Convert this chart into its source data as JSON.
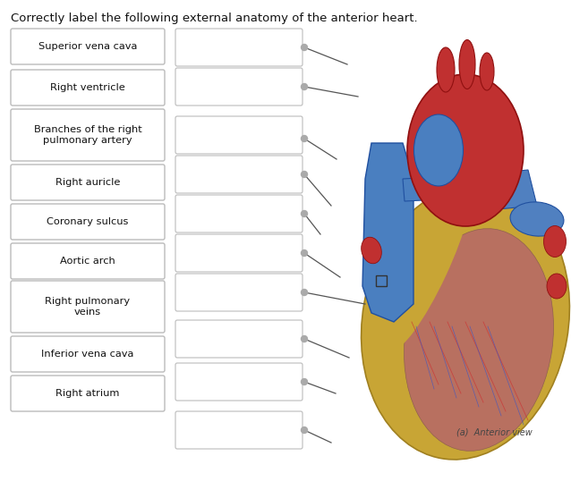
{
  "title": "Correctly label the following external anatomy of the anterior heart.",
  "title_fontsize": 9.5,
  "background_color": "#ffffff",
  "left_labels": [
    "Superior vena cava",
    "Right ventricle",
    "Branches of the right\npulmonary artery",
    "Right auricle",
    "Coronary sulcus",
    "Aortic arch",
    "Right pulmonary\nveins",
    "Inferior vena cava",
    "Right atrium"
  ],
  "box_facecolor": "#ffffff",
  "box_edgecolor": "#bbbbbb",
  "line_color": "#555555",
  "dot_color": "#aaaaaa",
  "font_color": "#111111",
  "label_fontsize": 8.2,
  "caption_text": "(a)  Anterior view",
  "caption_fontsize": 7
}
